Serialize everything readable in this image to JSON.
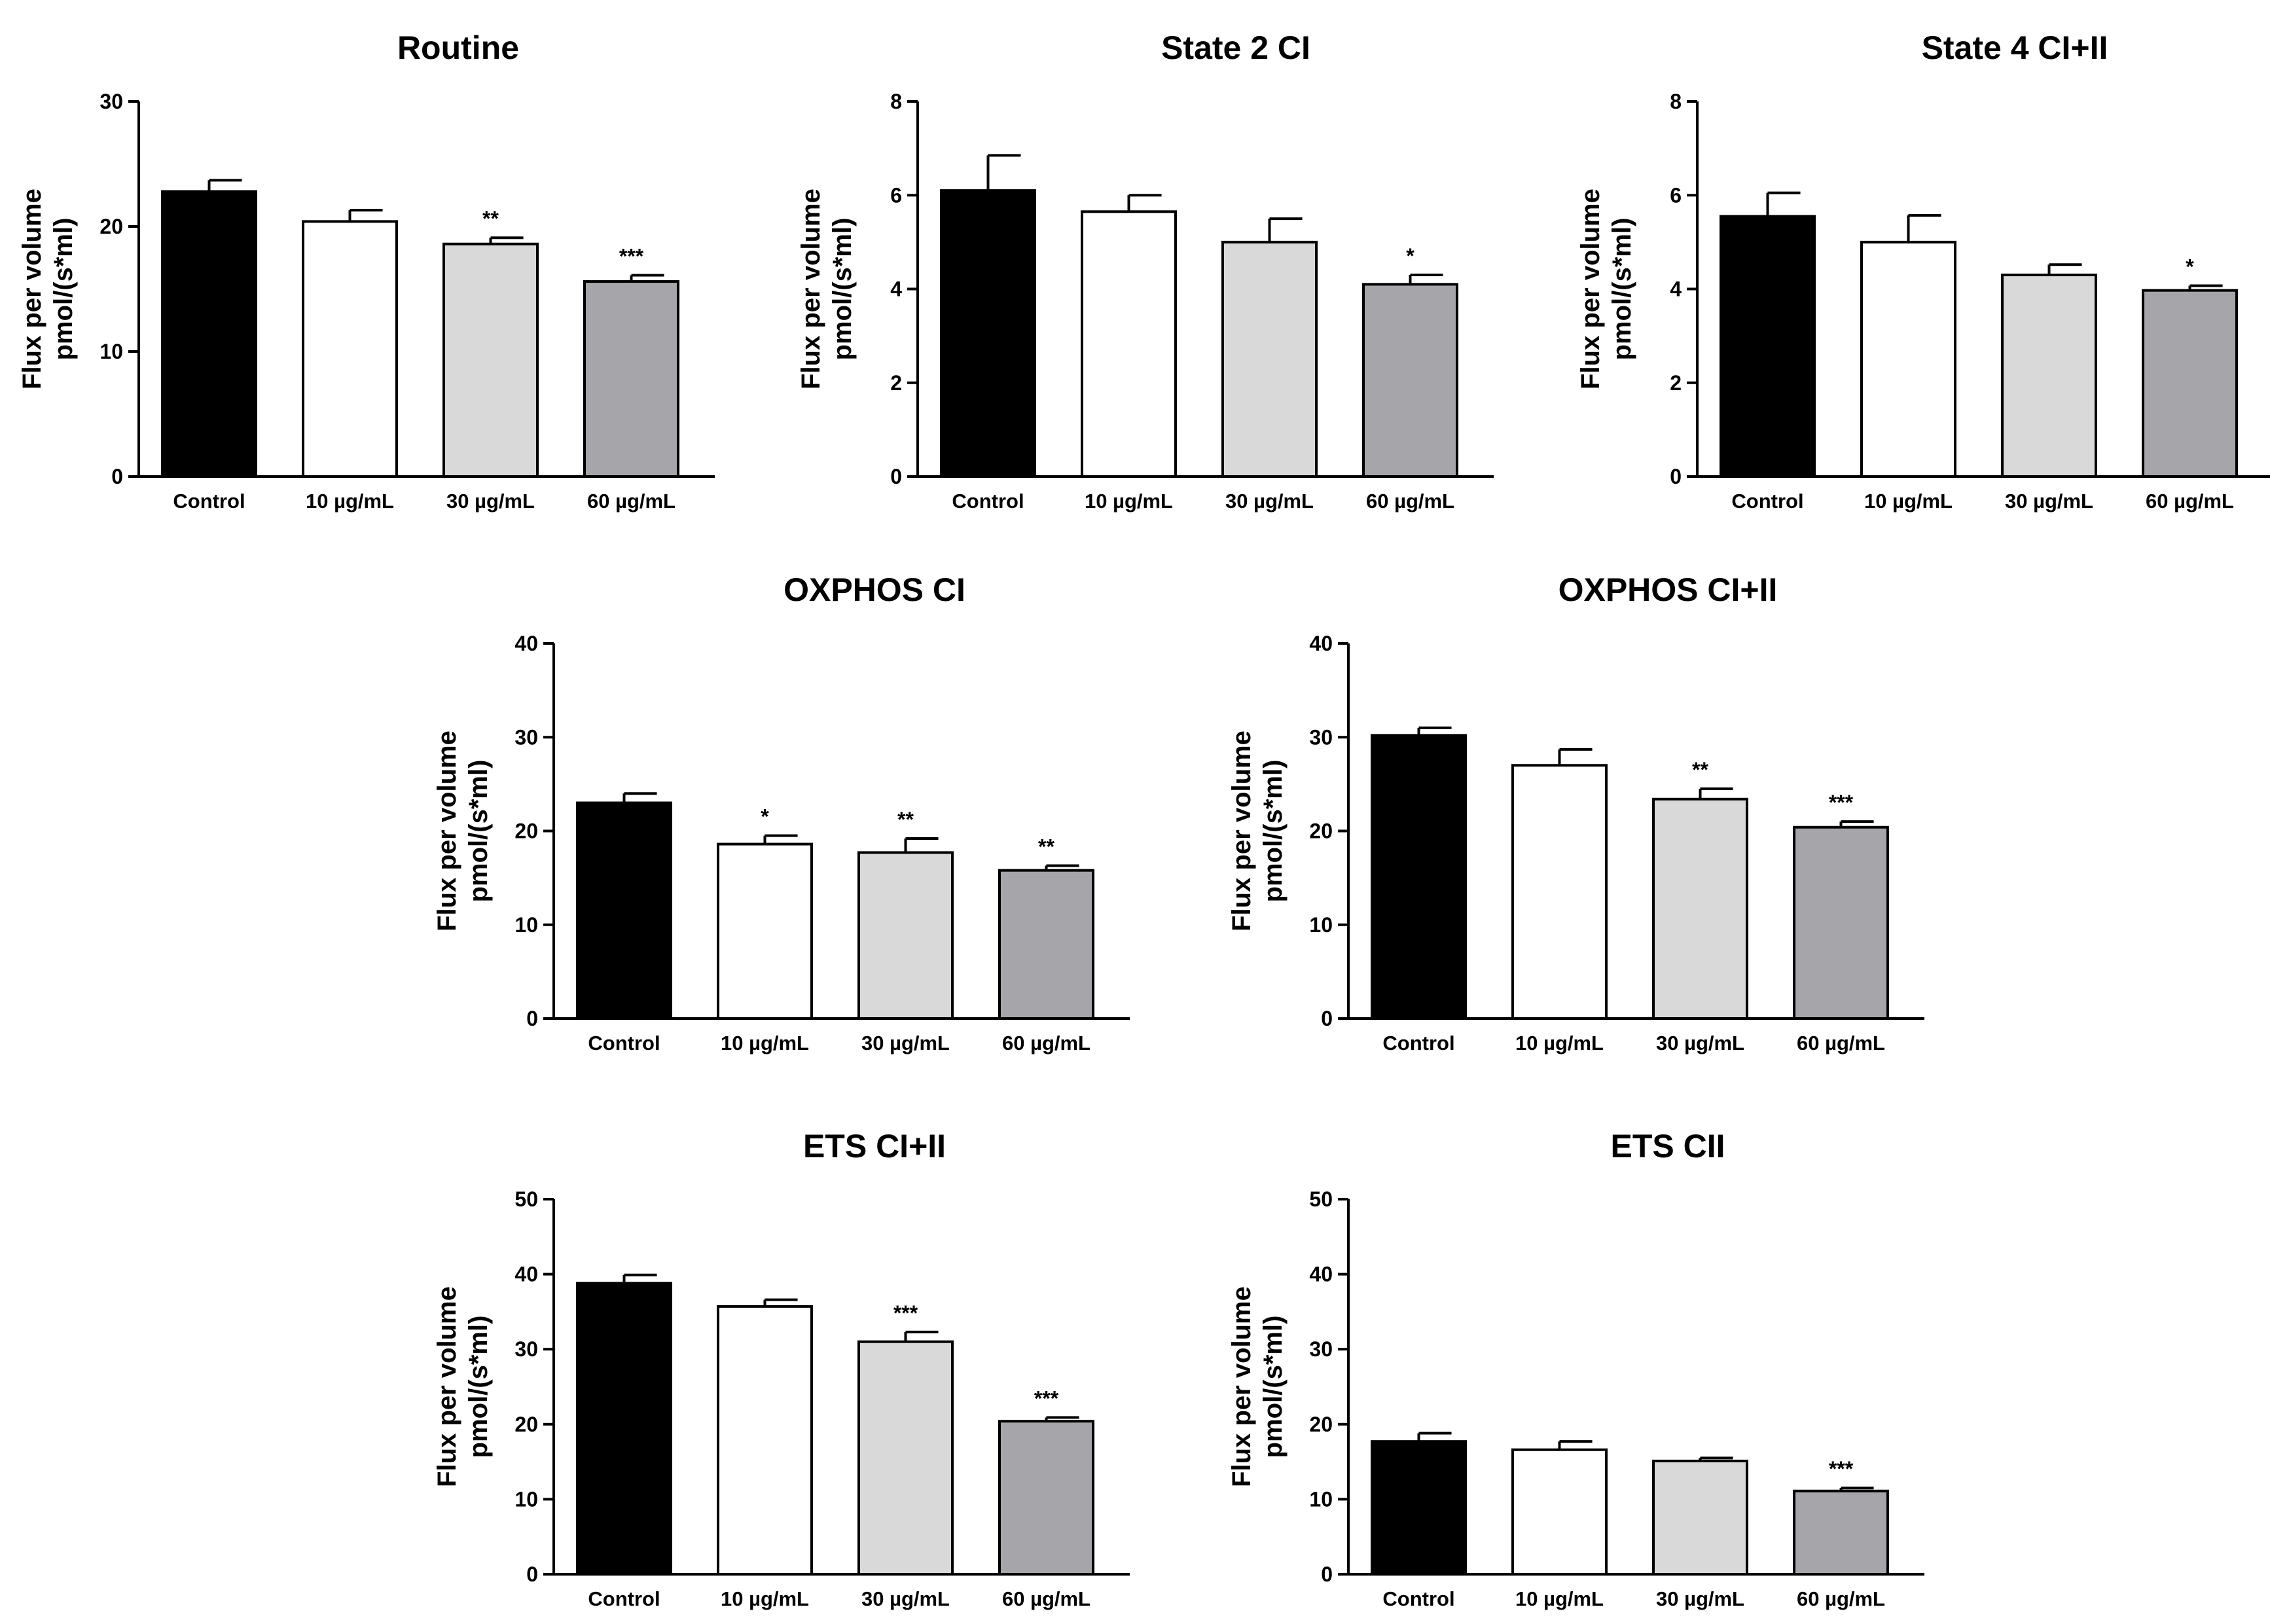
{
  "figure": {
    "y_label_line1": "Flux per volume",
    "y_label_line2": "pmol/(s*ml)"
  },
  "colors": {
    "control": "#000000",
    "dose10": "#ffffff",
    "dose30": "#d9d9d9",
    "dose60": "#a6a6aa",
    "stroke": "#000000"
  },
  "chart_data": [
    {
      "type": "bar",
      "title": "Routine",
      "categories": [
        "Control",
        "10 µg/mL",
        "30 µg/mL",
        "60 µg/mL"
      ],
      "values": [
        22.8,
        20.4,
        18.6,
        15.6
      ],
      "errors": [
        0.9,
        0.9,
        0.5,
        0.5
      ],
      "significance": [
        "",
        "",
        "**",
        "***"
      ],
      "ylim": [
        0,
        30
      ],
      "yticks": [
        0,
        10,
        20,
        30
      ],
      "xlabel": "",
      "ylabel": "Flux per volume pmol/(s*ml)"
    },
    {
      "type": "bar",
      "title": "State 2 CI",
      "categories": [
        "Control",
        "10 µg/mL",
        "30 µg/mL",
        "60 µg/mL"
      ],
      "values": [
        6.1,
        5.65,
        5.0,
        4.1
      ],
      "errors": [
        0.75,
        0.35,
        0.5,
        0.2
      ],
      "significance": [
        "",
        "",
        "",
        "*"
      ],
      "ylim": [
        0,
        8
      ],
      "yticks": [
        0,
        2,
        4,
        6,
        8
      ],
      "xlabel": "",
      "ylabel": "Flux per volume pmol/(s*ml)"
    },
    {
      "type": "bar",
      "title": "State 4 CI+II",
      "categories": [
        "Control",
        "10 µg/mL",
        "30 µg/mL",
        "60 µg/mL"
      ],
      "values": [
        5.55,
        5.0,
        4.3,
        3.97
      ],
      "errors": [
        0.5,
        0.57,
        0.22,
        0.1
      ],
      "significance": [
        "",
        "",
        "",
        "*"
      ],
      "ylim": [
        0,
        8
      ],
      "yticks": [
        0,
        2,
        4,
        6,
        8
      ],
      "xlabel": "",
      "ylabel": "Flux per volume pmol/(s*ml)"
    },
    {
      "type": "bar",
      "title": "OXPHOS CI",
      "categories": [
        "Control",
        "10 µg/mL",
        "30 µg/mL",
        "60 µg/mL"
      ],
      "values": [
        23.0,
        18.6,
        17.7,
        15.8
      ],
      "errors": [
        1.0,
        0.9,
        1.5,
        0.5
      ],
      "significance": [
        "",
        "*",
        "**",
        "**"
      ],
      "ylim": [
        0,
        40
      ],
      "yticks": [
        0,
        10,
        20,
        30,
        40
      ],
      "xlabel": "",
      "ylabel": "Flux per volume pmol/(s*ml)"
    },
    {
      "type": "bar",
      "title": "OXPHOS CI+II",
      "categories": [
        "Control",
        "10 µg/mL",
        "30 µg/mL",
        "60 µg/mL"
      ],
      "values": [
        30.2,
        27.0,
        23.4,
        20.4
      ],
      "errors": [
        0.8,
        1.7,
        1.1,
        0.6
      ],
      "significance": [
        "",
        "",
        "**",
        "***"
      ],
      "ylim": [
        0,
        40
      ],
      "yticks": [
        0,
        10,
        20,
        30,
        40
      ],
      "xlabel": "",
      "ylabel": "Flux per volume pmol/(s*ml)"
    },
    {
      "type": "bar",
      "title": "ETS CI+II",
      "categories": [
        "Control",
        "10 µg/mL",
        "30 µg/mL",
        "60 µg/mL"
      ],
      "values": [
        38.8,
        35.7,
        31.0,
        20.4
      ],
      "errors": [
        1.1,
        0.9,
        1.3,
        0.5
      ],
      "significance": [
        "",
        "",
        "***",
        "***"
      ],
      "ylim": [
        0,
        50
      ],
      "yticks": [
        0,
        10,
        20,
        30,
        40,
        50
      ],
      "xlabel": "",
      "ylabel": "Flux per volume pmol/(s*ml)"
    },
    {
      "type": "bar",
      "title": "ETS CII",
      "categories": [
        "Control",
        "10 µg/mL",
        "30 µg/mL",
        "60 µg/mL"
      ],
      "values": [
        17.7,
        16.6,
        15.1,
        11.1
      ],
      "errors": [
        1.1,
        1.1,
        0.4,
        0.4
      ],
      "significance": [
        "",
        "",
        "",
        "***"
      ],
      "ylim": [
        0,
        50
      ],
      "yticks": [
        0,
        10,
        20,
        30,
        40,
        50
      ],
      "xlabel": "",
      "ylabel": "Flux per volume pmol/(s*ml)"
    }
  ]
}
